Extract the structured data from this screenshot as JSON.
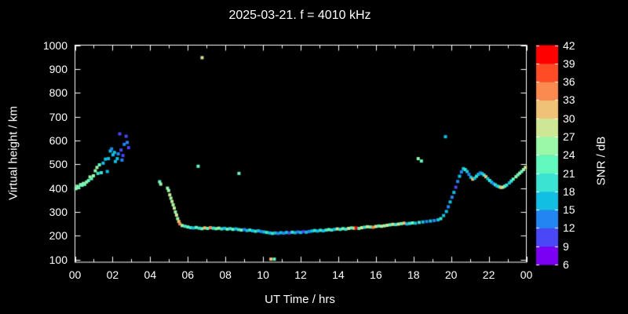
{
  "window": {
    "background": "#000000",
    "text_color": "#ffffff"
  },
  "chart_data": {
    "type": "scatter",
    "title": "2025-03-21. f = 4010 kHz",
    "xlabel": "UT Time / hrs",
    "ylabel": "Virtual height / km",
    "xlim": [
      0,
      24
    ],
    "ylim": [
      100,
      1000
    ],
    "grid": false,
    "marker": {
      "shape": "square",
      "size": 4
    },
    "x_tick_hours": [
      0,
      2,
      4,
      6,
      8,
      10,
      12,
      14,
      16,
      18,
      20,
      22,
      24
    ],
    "x_tick_labels": [
      "00",
      "02",
      "04",
      "06",
      "08",
      "10",
      "12",
      "14",
      "16",
      "18",
      "20",
      "22",
      "00"
    ],
    "x_minor_every_hours": 1,
    "y_ticks": [
      100,
      200,
      300,
      400,
      500,
      600,
      700,
      800,
      900,
      1000
    ],
    "colorbar": {
      "label": "SNR / dB",
      "min": 6,
      "max": 42,
      "step": 3,
      "tick_labels": [
        "6",
        "9",
        "12",
        "15",
        "18",
        "21",
        "24",
        "27",
        "30",
        "33",
        "36",
        "39",
        "42"
      ],
      "segment_colors_bottom_to_top": [
        "#7B00F3",
        "#4A47F6",
        "#2385F2",
        "#12BFE3",
        "#3BE3D2",
        "#63F8BE",
        "#9BF8A8",
        "#CEE797",
        "#F0C277",
        "#FA8A50",
        "#FF4B26",
        "#FF0000"
      ]
    },
    "points_format": [
      "ut_hour",
      "virtual_height_km",
      "snr_db_bin"
    ],
    "points": [
      [
        0.05,
        398,
        24
      ],
      [
        0.12,
        408,
        24
      ],
      [
        0.2,
        404,
        21
      ],
      [
        0.3,
        415,
        24
      ],
      [
        0.38,
        412,
        21
      ],
      [
        0.45,
        420,
        24
      ],
      [
        0.52,
        416,
        21
      ],
      [
        0.62,
        426,
        24
      ],
      [
        0.72,
        432,
        21
      ],
      [
        0.8,
        447,
        24
      ],
      [
        0.88,
        440,
        21
      ],
      [
        0.98,
        452,
        24
      ],
      [
        1.08,
        473,
        24
      ],
      [
        1.17,
        487,
        24
      ],
      [
        1.22,
        462,
        18
      ],
      [
        1.3,
        498,
        21
      ],
      [
        1.4,
        465,
        18
      ],
      [
        1.5,
        505,
        15
      ],
      [
        1.62,
        522,
        15
      ],
      [
        1.72,
        470,
        15
      ],
      [
        1.78,
        524,
        15
      ],
      [
        1.88,
        556,
        15
      ],
      [
        1.95,
        565,
        12
      ],
      [
        2.02,
        540,
        15
      ],
      [
        2.1,
        550,
        15
      ],
      [
        2.15,
        512,
        15
      ],
      [
        2.25,
        524,
        15
      ],
      [
        2.3,
        544,
        12
      ],
      [
        2.38,
        628,
        9
      ],
      [
        2.45,
        560,
        9
      ],
      [
        2.5,
        518,
        12
      ],
      [
        2.55,
        537,
        9
      ],
      [
        2.62,
        584,
        12
      ],
      [
        2.72,
        618,
        9
      ],
      [
        2.78,
        592,
        12
      ],
      [
        2.85,
        570,
        9
      ],
      [
        4.5,
        427,
        21
      ],
      [
        4.56,
        417,
        24
      ],
      [
        4.92,
        400,
        24
      ],
      [
        4.98,
        390,
        24
      ],
      [
        5.04,
        372,
        27
      ],
      [
        5.1,
        358,
        24
      ],
      [
        5.16,
        344,
        27
      ],
      [
        5.22,
        330,
        24
      ],
      [
        5.28,
        316,
        27
      ],
      [
        5.34,
        300,
        24
      ],
      [
        5.4,
        287,
        27
      ],
      [
        5.46,
        272,
        24
      ],
      [
        5.52,
        260,
        30
      ],
      [
        5.58,
        250,
        33
      ],
      [
        5.7,
        243,
        24
      ],
      [
        5.85,
        240,
        18
      ],
      [
        6.0,
        237,
        21
      ],
      [
        6.15,
        234,
        18
      ],
      [
        6.3,
        233,
        15
      ],
      [
        6.45,
        235,
        21
      ],
      [
        6.6,
        232,
        18
      ],
      [
        6.75,
        230,
        21
      ],
      [
        6.9,
        233,
        30
      ],
      [
        7.05,
        231,
        21
      ],
      [
        7.2,
        234,
        33
      ],
      [
        7.35,
        232,
        18
      ],
      [
        7.5,
        230,
        21
      ],
      [
        7.65,
        232,
        24
      ],
      [
        7.8,
        229,
        18
      ],
      [
        7.95,
        231,
        15
      ],
      [
        8.1,
        228,
        21
      ],
      [
        8.25,
        230,
        18
      ],
      [
        8.4,
        227,
        21
      ],
      [
        8.55,
        229,
        15
      ],
      [
        8.7,
        226,
        18
      ],
      [
        8.85,
        224,
        21
      ],
      [
        9.0,
        226,
        12
      ],
      [
        9.15,
        222,
        15
      ],
      [
        9.3,
        224,
        18
      ],
      [
        9.45,
        221,
        15
      ],
      [
        9.6,
        219,
        18
      ],
      [
        9.75,
        221,
        15
      ],
      [
        9.9,
        218,
        12
      ],
      [
        10.05,
        216,
        15
      ],
      [
        10.2,
        214,
        18
      ],
      [
        10.35,
        212,
        15
      ],
      [
        10.5,
        210,
        18
      ],
      [
        10.65,
        212,
        15
      ],
      [
        10.8,
        210,
        12
      ],
      [
        10.95,
        213,
        15
      ],
      [
        11.1,
        211,
        12
      ],
      [
        11.25,
        214,
        15
      ],
      [
        11.4,
        212,
        9
      ],
      [
        11.55,
        215,
        18
      ],
      [
        11.7,
        213,
        15
      ],
      [
        11.85,
        216,
        12
      ],
      [
        12.0,
        214,
        15
      ],
      [
        12.15,
        217,
        9
      ],
      [
        12.3,
        215,
        15
      ],
      [
        12.45,
        218,
        12
      ],
      [
        12.6,
        220,
        15
      ],
      [
        12.75,
        222,
        18
      ],
      [
        12.9,
        220,
        15
      ],
      [
        13.05,
        223,
        18
      ],
      [
        13.2,
        221,
        15
      ],
      [
        13.35,
        224,
        18
      ],
      [
        13.5,
        226,
        21
      ],
      [
        13.65,
        224,
        18
      ],
      [
        13.8,
        227,
        15
      ],
      [
        13.95,
        229,
        27
      ],
      [
        14.1,
        227,
        18
      ],
      [
        14.25,
        230,
        21
      ],
      [
        14.4,
        228,
        18
      ],
      [
        14.55,
        231,
        27
      ],
      [
        14.7,
        233,
        21
      ],
      [
        14.85,
        232,
        27
      ],
      [
        14.95,
        233,
        39
      ],
      [
        15.1,
        231,
        21
      ],
      [
        15.25,
        234,
        27
      ],
      [
        15.4,
        236,
        18
      ],
      [
        15.55,
        238,
        27
      ],
      [
        15.7,
        237,
        21
      ],
      [
        15.85,
        236,
        33
      ],
      [
        16.0,
        239,
        27
      ],
      [
        16.15,
        241,
        21
      ],
      [
        16.3,
        240,
        27
      ],
      [
        16.45,
        242,
        24
      ],
      [
        16.6,
        244,
        27
      ],
      [
        16.75,
        246,
        21
      ],
      [
        16.9,
        248,
        27
      ],
      [
        17.05,
        247,
        18
      ],
      [
        17.2,
        249,
        27
      ],
      [
        17.35,
        251,
        21
      ],
      [
        17.5,
        253,
        30
      ],
      [
        17.65,
        250,
        15
      ],
      [
        17.8,
        252,
        18
      ],
      [
        17.95,
        254,
        21
      ],
      [
        18.1,
        253,
        15
      ],
      [
        18.3,
        256,
        18
      ],
      [
        18.5,
        258,
        15
      ],
      [
        18.7,
        260,
        12
      ],
      [
        18.9,
        262,
        15
      ],
      [
        19.1,
        264,
        12
      ],
      [
        19.3,
        267,
        15
      ],
      [
        6.55,
        492,
        21
      ],
      [
        6.76,
        948,
        27
      ],
      [
        8.72,
        462,
        21
      ],
      [
        10.42,
        102,
        30
      ],
      [
        10.6,
        102,
        21
      ],
      [
        18.25,
        524,
        24
      ],
      [
        18.42,
        514,
        21
      ],
      [
        19.7,
        616,
        15
      ],
      [
        19.45,
        272,
        18
      ],
      [
        19.6,
        285,
        15
      ],
      [
        19.75,
        302,
        15
      ],
      [
        19.85,
        322,
        12
      ],
      [
        19.95,
        342,
        15
      ],
      [
        20.05,
        362,
        12
      ],
      [
        20.15,
        382,
        15
      ],
      [
        20.25,
        404,
        9
      ],
      [
        20.35,
        428,
        12
      ],
      [
        20.45,
        450,
        15
      ],
      [
        20.55,
        468,
        12
      ],
      [
        20.65,
        482,
        15
      ],
      [
        20.75,
        478,
        18
      ],
      [
        20.85,
        470,
        15
      ],
      [
        20.95,
        458,
        12
      ],
      [
        21.05,
        446,
        15
      ],
      [
        21.15,
        438,
        30
      ],
      [
        21.25,
        442,
        15
      ],
      [
        21.35,
        450,
        18
      ],
      [
        21.45,
        458,
        15
      ],
      [
        21.55,
        464,
        12
      ],
      [
        21.65,
        461,
        15
      ],
      [
        21.75,
        455,
        18
      ],
      [
        21.85,
        448,
        30
      ],
      [
        21.95,
        440,
        15
      ],
      [
        22.05,
        432,
        18
      ],
      [
        22.15,
        425,
        15
      ],
      [
        22.25,
        419,
        12
      ],
      [
        22.35,
        414,
        18
      ],
      [
        22.45,
        409,
        15
      ],
      [
        22.55,
        406,
        18
      ],
      [
        22.65,
        403,
        30
      ],
      [
        22.75,
        404,
        27
      ],
      [
        22.85,
        408,
        21
      ],
      [
        22.95,
        413,
        18
      ],
      [
        23.1,
        422,
        15
      ],
      [
        23.2,
        430,
        18
      ],
      [
        23.3,
        438,
        21
      ],
      [
        23.45,
        448,
        24
      ],
      [
        23.55,
        456,
        21
      ],
      [
        23.65,
        463,
        24
      ],
      [
        23.75,
        470,
        21
      ],
      [
        23.85,
        478,
        24
      ],
      [
        23.95,
        487,
        27
      ]
    ]
  }
}
